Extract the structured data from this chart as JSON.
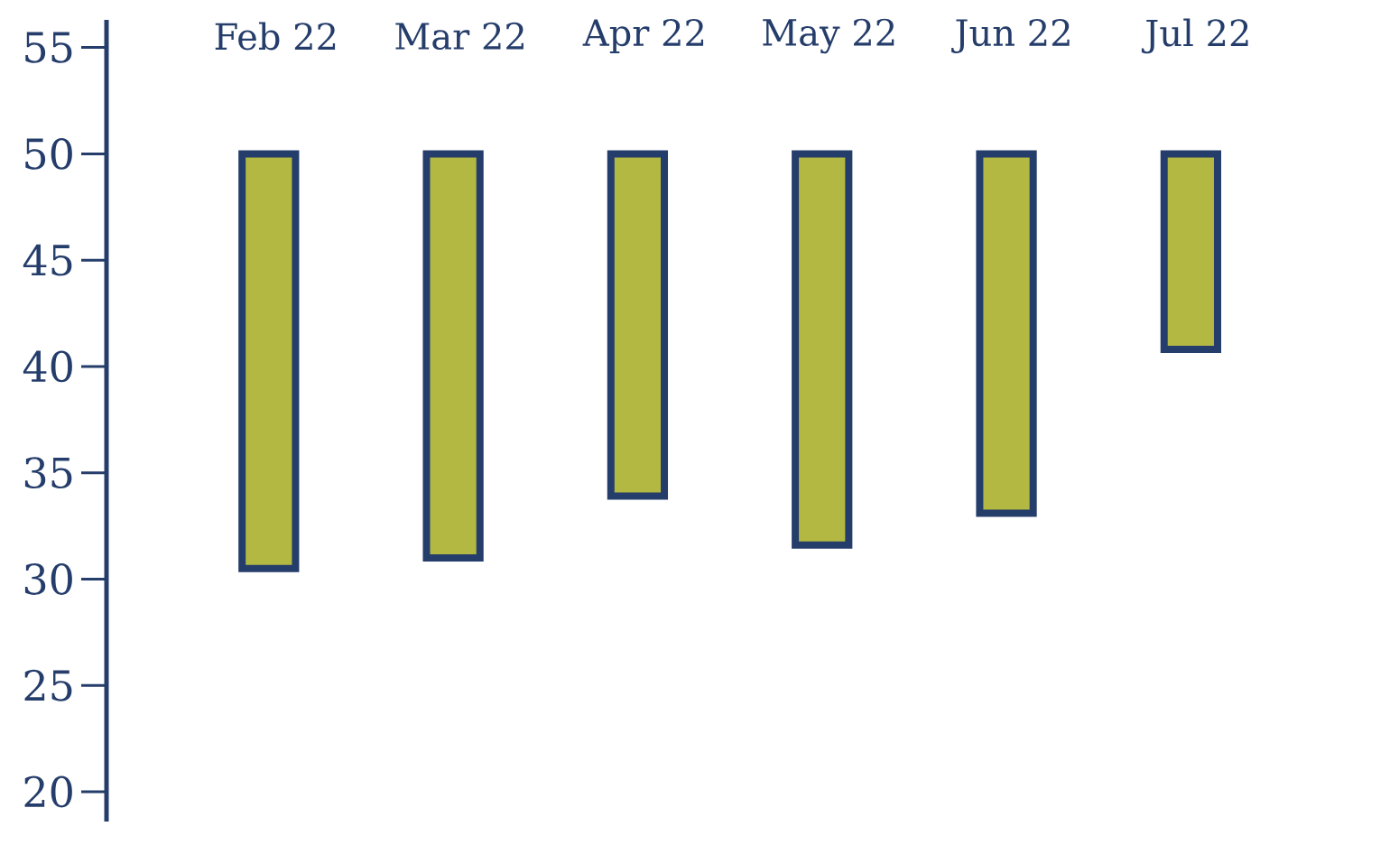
{
  "chart_data": {
    "type": "bar",
    "categories": [
      "Feb 22",
      "Mar 22",
      "Apr 22",
      "May 22",
      "Jun 22",
      "Jul 22"
    ],
    "base": [
      30.5,
      31,
      33.9,
      31.6,
      33.1,
      40.8
    ],
    "values": [
      19.5,
      19,
      16.1,
      18.4,
      16.9,
      9.2
    ],
    "color": "#b3b842",
    "ylim": [
      18.6,
      56.3
    ],
    "yticks": [
      20,
      25,
      30,
      35,
      40,
      45,
      50,
      55
    ]
  }
}
